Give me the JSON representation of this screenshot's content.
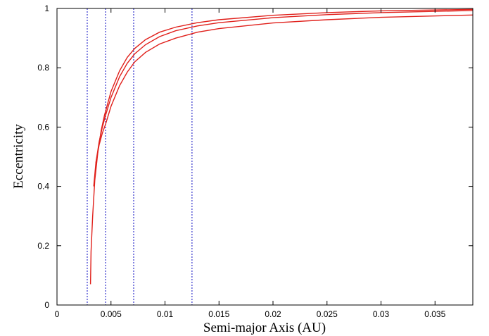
{
  "chart_data": {
    "type": "line",
    "title": "",
    "xlabel": "Semi-major Axis (AU)",
    "ylabel": "Eccentricity",
    "xlim": [
      0,
      0.0385
    ],
    "ylim": [
      0,
      1
    ],
    "x_ticks": [
      0,
      0.005,
      0.01,
      0.015,
      0.02,
      0.025,
      0.03,
      0.035
    ],
    "x_tick_labels": [
      "0",
      "0.005",
      "0.01",
      "0.015",
      "0.02",
      "0.025",
      "0.03",
      "0.035"
    ],
    "y_ticks": [
      0,
      0.2,
      0.4,
      0.6,
      0.8,
      1
    ],
    "y_tick_labels": [
      "0",
      "0.2",
      "0.4",
      "0.6",
      "0.8",
      "1"
    ],
    "grid": false,
    "legend": "none",
    "line_color": "#e0201b",
    "vline_color": "#3333cc",
    "vertical_lines": [
      0.0028,
      0.0045,
      0.0071,
      0.0125
    ],
    "series": [
      {
        "x": [
          0.0031,
          0.00315,
          0.0033,
          0.0035,
          0.0038,
          0.0041,
          0.0044,
          0.005,
          0.0058,
          0.0065,
          0.0072,
          0.0082,
          0.0095,
          0.011,
          0.013,
          0.015,
          0.02,
          0.025,
          0.03,
          0.0385
        ],
        "y": [
          0.07,
          0.18,
          0.3,
          0.42,
          0.52,
          0.59,
          0.64,
          0.72,
          0.79,
          0.835,
          0.865,
          0.895,
          0.92,
          0.937,
          0.952,
          0.962,
          0.977,
          0.986,
          0.992,
          0.997
        ]
      },
      {
        "x": [
          0.0034,
          0.0036,
          0.0039,
          0.0042,
          0.0045,
          0.005,
          0.0058,
          0.0065,
          0.0072,
          0.0082,
          0.0095,
          0.011,
          0.013,
          0.015,
          0.02,
          0.025,
          0.03,
          0.0385
        ],
        "y": [
          0.4,
          0.48,
          0.55,
          0.6,
          0.64,
          0.7,
          0.77,
          0.815,
          0.847,
          0.878,
          0.905,
          0.925,
          0.941,
          0.952,
          0.969,
          0.979,
          0.986,
          0.993
        ]
      },
      {
        "x": [
          0.0036,
          0.0039,
          0.0042,
          0.0045,
          0.005,
          0.0058,
          0.0065,
          0.0072,
          0.0082,
          0.0095,
          0.011,
          0.013,
          0.015,
          0.02,
          0.025,
          0.03,
          0.0385
        ],
        "y": [
          0.48,
          0.54,
          0.58,
          0.61,
          0.67,
          0.74,
          0.785,
          0.82,
          0.852,
          0.88,
          0.9,
          0.92,
          0.932,
          0.951,
          0.962,
          0.97,
          0.978
        ]
      }
    ]
  }
}
